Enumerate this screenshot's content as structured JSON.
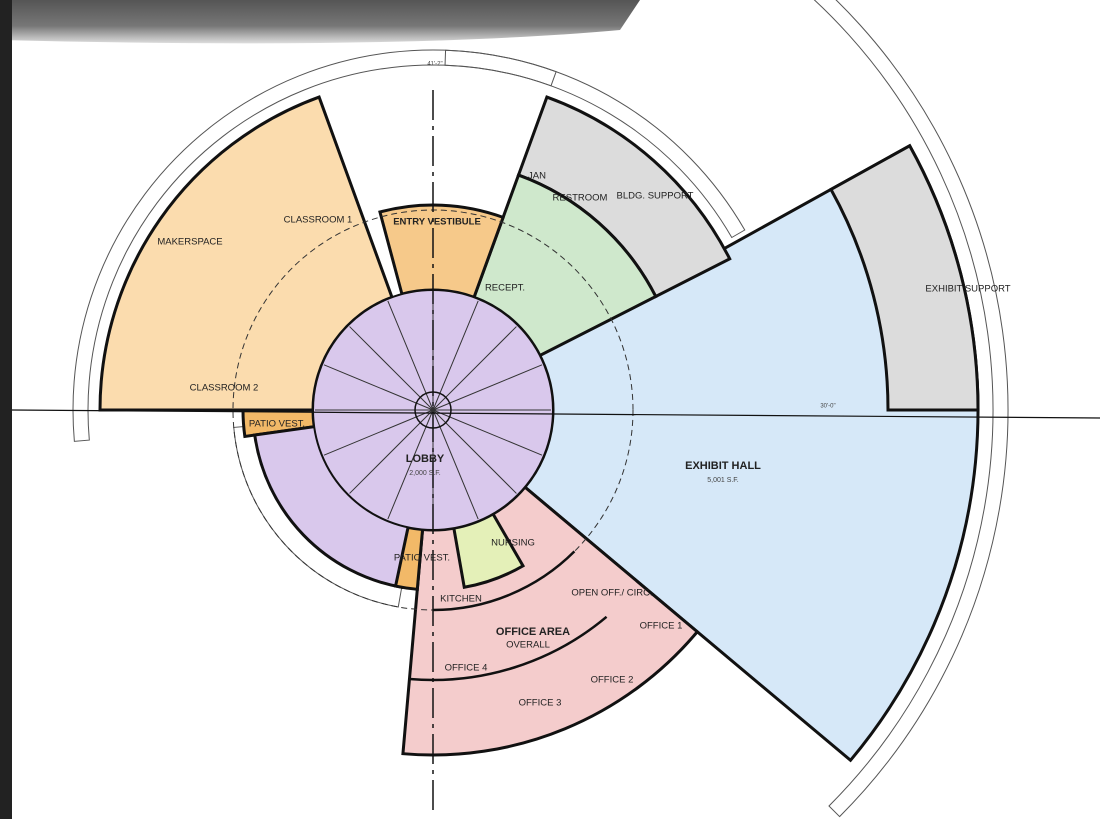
{
  "rooms": [
    {
      "name": "CLASSROOM 1"
    },
    {
      "name": "MAKERSPACE"
    },
    {
      "name": "CLASSROOM 2"
    },
    {
      "name": "ENTRY VESTIBULE"
    },
    {
      "name": "JAN"
    },
    {
      "name": "RESTROOM"
    },
    {
      "name": "BLDG. SUPPORT"
    },
    {
      "name": "RECEPT."
    },
    {
      "name": "EXHIBIT SUPPORT"
    },
    {
      "name": "EXHIBIT HALL",
      "area": "5,001 S.F."
    },
    {
      "name": "LOBBY",
      "area": "2,000 S.F."
    },
    {
      "name": "PATIO VEST."
    },
    {
      "name": "PATIO VEST."
    },
    {
      "name": "NURSING"
    },
    {
      "name": "KITCHEN"
    },
    {
      "name": "OPEN OFF./ CIRC."
    },
    {
      "name": "OFFICE AREA"
    },
    {
      "name": "OVERALL"
    },
    {
      "name": "OFFICE 1"
    },
    {
      "name": "OFFICE 2"
    },
    {
      "name": "OFFICE 3"
    },
    {
      "name": "OFFICE 4"
    }
  ],
  "dimensions": [
    "41'-2\"",
    "30'-0\""
  ]
}
